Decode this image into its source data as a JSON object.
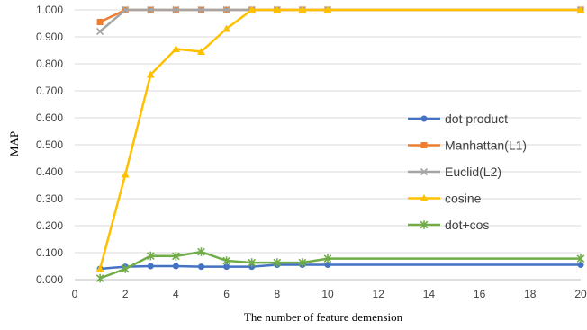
{
  "chart_data": {
    "type": "line",
    "xlabel": "The number of feature demension",
    "ylabel": "MAP",
    "xlim": [
      0,
      20
    ],
    "ylim": [
      0,
      1
    ],
    "x_ticks": [
      "0",
      "2",
      "4",
      "6",
      "8",
      "10",
      "12",
      "14",
      "16",
      "18",
      "20"
    ],
    "y_ticks": [
      "0.000",
      "0.100",
      "0.200",
      "0.300",
      "0.400",
      "0.500",
      "0.600",
      "0.700",
      "0.800",
      "0.900",
      "1.000"
    ],
    "grid": "horizontal",
    "legend_position": "right",
    "x": [
      1,
      2,
      3,
      4,
      5,
      6,
      7,
      8,
      9,
      10,
      20
    ],
    "series": [
      {
        "name": "dot product",
        "color": "#4472C4",
        "marker": "circle",
        "values": [
          0.04,
          0.048,
          0.05,
          0.05,
          0.048,
          0.048,
          0.048,
          0.055,
          0.055,
          0.055,
          0.055
        ]
      },
      {
        "name": "Manhattan(L1)",
        "color": "#ED7D31",
        "marker": "square",
        "values": [
          0.955,
          1.0,
          1.0,
          1.0,
          1.0,
          1.0,
          1.0,
          1.0,
          1.0,
          1.0,
          1.0
        ]
      },
      {
        "name": "Euclid(L2)",
        "color": "#A5A5A5",
        "marker": "x",
        "values": [
          0.92,
          1.0,
          1.0,
          1.0,
          1.0,
          1.0,
          1.0,
          1.0,
          1.0,
          1.0,
          1.0
        ]
      },
      {
        "name": "cosine",
        "color": "#FFC000",
        "marker": "triangle",
        "values": [
          0.04,
          0.39,
          0.76,
          0.855,
          0.845,
          0.93,
          1.0,
          1.0,
          1.0,
          1.0,
          1.0
        ]
      },
      {
        "name": "dot+cos",
        "color": "#70AD47",
        "marker": "star",
        "values": [
          0.005,
          0.04,
          0.088,
          0.087,
          0.103,
          0.07,
          0.063,
          0.063,
          0.063,
          0.078,
          0.078
        ]
      }
    ]
  }
}
